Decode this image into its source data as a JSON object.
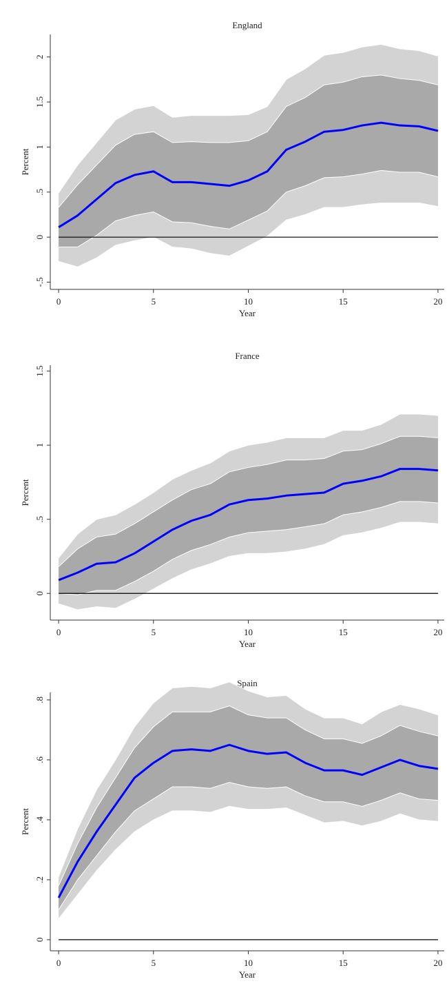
{
  "chart_data": [
    {
      "type": "line",
      "title": "England",
      "x_label": "Year",
      "y_label": "Percent",
      "x": [
        0,
        1,
        2,
        3,
        4,
        5,
        6,
        7,
        8,
        9,
        10,
        11,
        12,
        13,
        14,
        15,
        16,
        17,
        18,
        19,
        20
      ],
      "xlim": [
        -0.44,
        20.33
      ],
      "xticks": [
        0,
        5,
        10,
        15,
        20
      ],
      "ylim": [
        -0.58,
        2.25
      ],
      "yticks": [
        {
          "value": -0.5,
          "label": "-.5"
        },
        0,
        {
          "value": 0.5,
          "label": ".5"
        },
        1,
        {
          "value": 1.5,
          "label": "1.5"
        },
        2
      ],
      "reference_line": 0,
      "bands": [
        {
          "color": "#d3d3d3",
          "lower": [
            -0.27,
            -0.33,
            -0.23,
            -0.09,
            -0.04,
            0.0,
            -0.11,
            -0.13,
            -0.18,
            -0.21,
            -0.1,
            0.01,
            0.19,
            0.25,
            0.33,
            0.33,
            0.36,
            0.38,
            0.38,
            0.38,
            0.34
          ],
          "upper": [
            0.49,
            0.8,
            1.05,
            1.3,
            1.42,
            1.46,
            1.33,
            1.35,
            1.35,
            1.35,
            1.36,
            1.45,
            1.75,
            1.87,
            2.02,
            2.05,
            2.11,
            2.14,
            2.09,
            2.07,
            2.01
          ]
        },
        {
          "color": "#a9a9a9",
          "lower": [
            -0.11,
            -0.11,
            0.02,
            0.18,
            0.24,
            0.28,
            0.17,
            0.16,
            0.12,
            0.09,
            0.19,
            0.29,
            0.5,
            0.57,
            0.66,
            0.67,
            0.7,
            0.74,
            0.72,
            0.72,
            0.67
          ],
          "upper": [
            0.33,
            0.58,
            0.8,
            1.02,
            1.14,
            1.17,
            1.05,
            1.06,
            1.05,
            1.05,
            1.07,
            1.17,
            1.45,
            1.55,
            1.69,
            1.72,
            1.78,
            1.8,
            1.76,
            1.74,
            1.69
          ]
        }
      ],
      "series": [
        {
          "color": "#0000ff",
          "values": [
            0.11,
            0.24,
            0.42,
            0.6,
            0.69,
            0.73,
            0.61,
            0.61,
            0.59,
            0.57,
            0.63,
            0.73,
            0.97,
            1.06,
            1.17,
            1.19,
            1.24,
            1.27,
            1.24,
            1.23,
            1.18
          ]
        }
      ]
    },
    {
      "type": "line",
      "title": "France",
      "x_label": "Year",
      "y_label": "Percent",
      "x": [
        0,
        1,
        2,
        3,
        4,
        5,
        6,
        7,
        8,
        9,
        10,
        11,
        12,
        13,
        14,
        15,
        16,
        17,
        18,
        19,
        20
      ],
      "xlim": [
        -0.44,
        20.33
      ],
      "xticks": [
        0,
        5,
        10,
        15,
        20
      ],
      "ylim": [
        -0.18,
        1.54
      ],
      "yticks": [
        0,
        {
          "value": 0.5,
          "label": ".5"
        },
        1,
        {
          "value": 1.5,
          "label": "1.5"
        }
      ],
      "reference_line": 0,
      "bands": [
        {
          "color": "#d3d3d3",
          "lower": [
            -0.07,
            -0.11,
            -0.09,
            -0.1,
            -0.04,
            0.03,
            0.1,
            0.16,
            0.2,
            0.25,
            0.27,
            0.27,
            0.28,
            0.3,
            0.33,
            0.39,
            0.41,
            0.44,
            0.48,
            0.48,
            0.47
          ],
          "upper": [
            0.24,
            0.4,
            0.5,
            0.53,
            0.6,
            0.68,
            0.77,
            0.83,
            0.88,
            0.96,
            1.0,
            1.02,
            1.05,
            1.05,
            1.05,
            1.1,
            1.1,
            1.14,
            1.21,
            1.21,
            1.2
          ]
        },
        {
          "color": "#a9a9a9",
          "lower": [
            0.0,
            -0.01,
            0.02,
            0.02,
            0.08,
            0.15,
            0.23,
            0.29,
            0.33,
            0.38,
            0.41,
            0.42,
            0.43,
            0.45,
            0.47,
            0.53,
            0.55,
            0.58,
            0.62,
            0.62,
            0.61
          ],
          "upper": [
            0.18,
            0.3,
            0.38,
            0.4,
            0.47,
            0.55,
            0.63,
            0.7,
            0.74,
            0.82,
            0.85,
            0.87,
            0.9,
            0.9,
            0.91,
            0.96,
            0.97,
            1.01,
            1.06,
            1.06,
            1.05
          ]
        }
      ],
      "series": [
        {
          "color": "#0000ff",
          "values": [
            0.09,
            0.14,
            0.2,
            0.21,
            0.27,
            0.35,
            0.43,
            0.49,
            0.53,
            0.6,
            0.63,
            0.64,
            0.66,
            0.67,
            0.68,
            0.74,
            0.76,
            0.79,
            0.84,
            0.84,
            0.83
          ]
        }
      ]
    },
    {
      "type": "line",
      "title": "Spain",
      "x_label": "Year",
      "y_label": "Percent",
      "x": [
        0,
        1,
        2,
        3,
        4,
        5,
        6,
        7,
        8,
        9,
        10,
        11,
        12,
        13,
        14,
        15,
        16,
        17,
        18,
        19,
        20
      ],
      "xlim": [
        -0.44,
        20.33
      ],
      "xticks": [
        0,
        5,
        10,
        15,
        20
      ],
      "ylim": [
        -0.037,
        0.825
      ],
      "yticks": [
        0,
        {
          "value": 0.2,
          "label": ".2"
        },
        {
          "value": 0.4,
          "label": ".4"
        },
        {
          "value": 0.6,
          "label": ".6"
        },
        {
          "value": 0.8,
          "label": ".8"
        }
      ],
      "reference_line": 0,
      "bands": [
        {
          "color": "#d3d3d3",
          "lower": [
            0.07,
            0.15,
            0.23,
            0.3,
            0.36,
            0.4,
            0.43,
            0.43,
            0.425,
            0.445,
            0.435,
            0.435,
            0.44,
            0.415,
            0.39,
            0.395,
            0.38,
            0.395,
            0.42,
            0.4,
            0.395
          ],
          "upper": [
            0.21,
            0.37,
            0.5,
            0.6,
            0.71,
            0.79,
            0.84,
            0.845,
            0.84,
            0.86,
            0.83,
            0.81,
            0.815,
            0.77,
            0.74,
            0.74,
            0.72,
            0.76,
            0.785,
            0.77,
            0.75
          ]
        },
        {
          "color": "#a9a9a9",
          "lower": [
            0.1,
            0.2,
            0.28,
            0.36,
            0.43,
            0.47,
            0.51,
            0.51,
            0.505,
            0.525,
            0.51,
            0.505,
            0.51,
            0.48,
            0.46,
            0.46,
            0.445,
            0.465,
            0.49,
            0.47,
            0.465
          ],
          "upper": [
            0.18,
            0.32,
            0.44,
            0.54,
            0.64,
            0.71,
            0.76,
            0.76,
            0.76,
            0.78,
            0.75,
            0.74,
            0.74,
            0.7,
            0.67,
            0.67,
            0.655,
            0.68,
            0.715,
            0.695,
            0.68
          ]
        }
      ],
      "series": [
        {
          "color": "#0000ff",
          "values": [
            0.14,
            0.26,
            0.36,
            0.45,
            0.54,
            0.59,
            0.63,
            0.635,
            0.63,
            0.65,
            0.63,
            0.62,
            0.625,
            0.59,
            0.565,
            0.565,
            0.55,
            0.575,
            0.6,
            0.58,
            0.57
          ]
        }
      ]
    }
  ]
}
